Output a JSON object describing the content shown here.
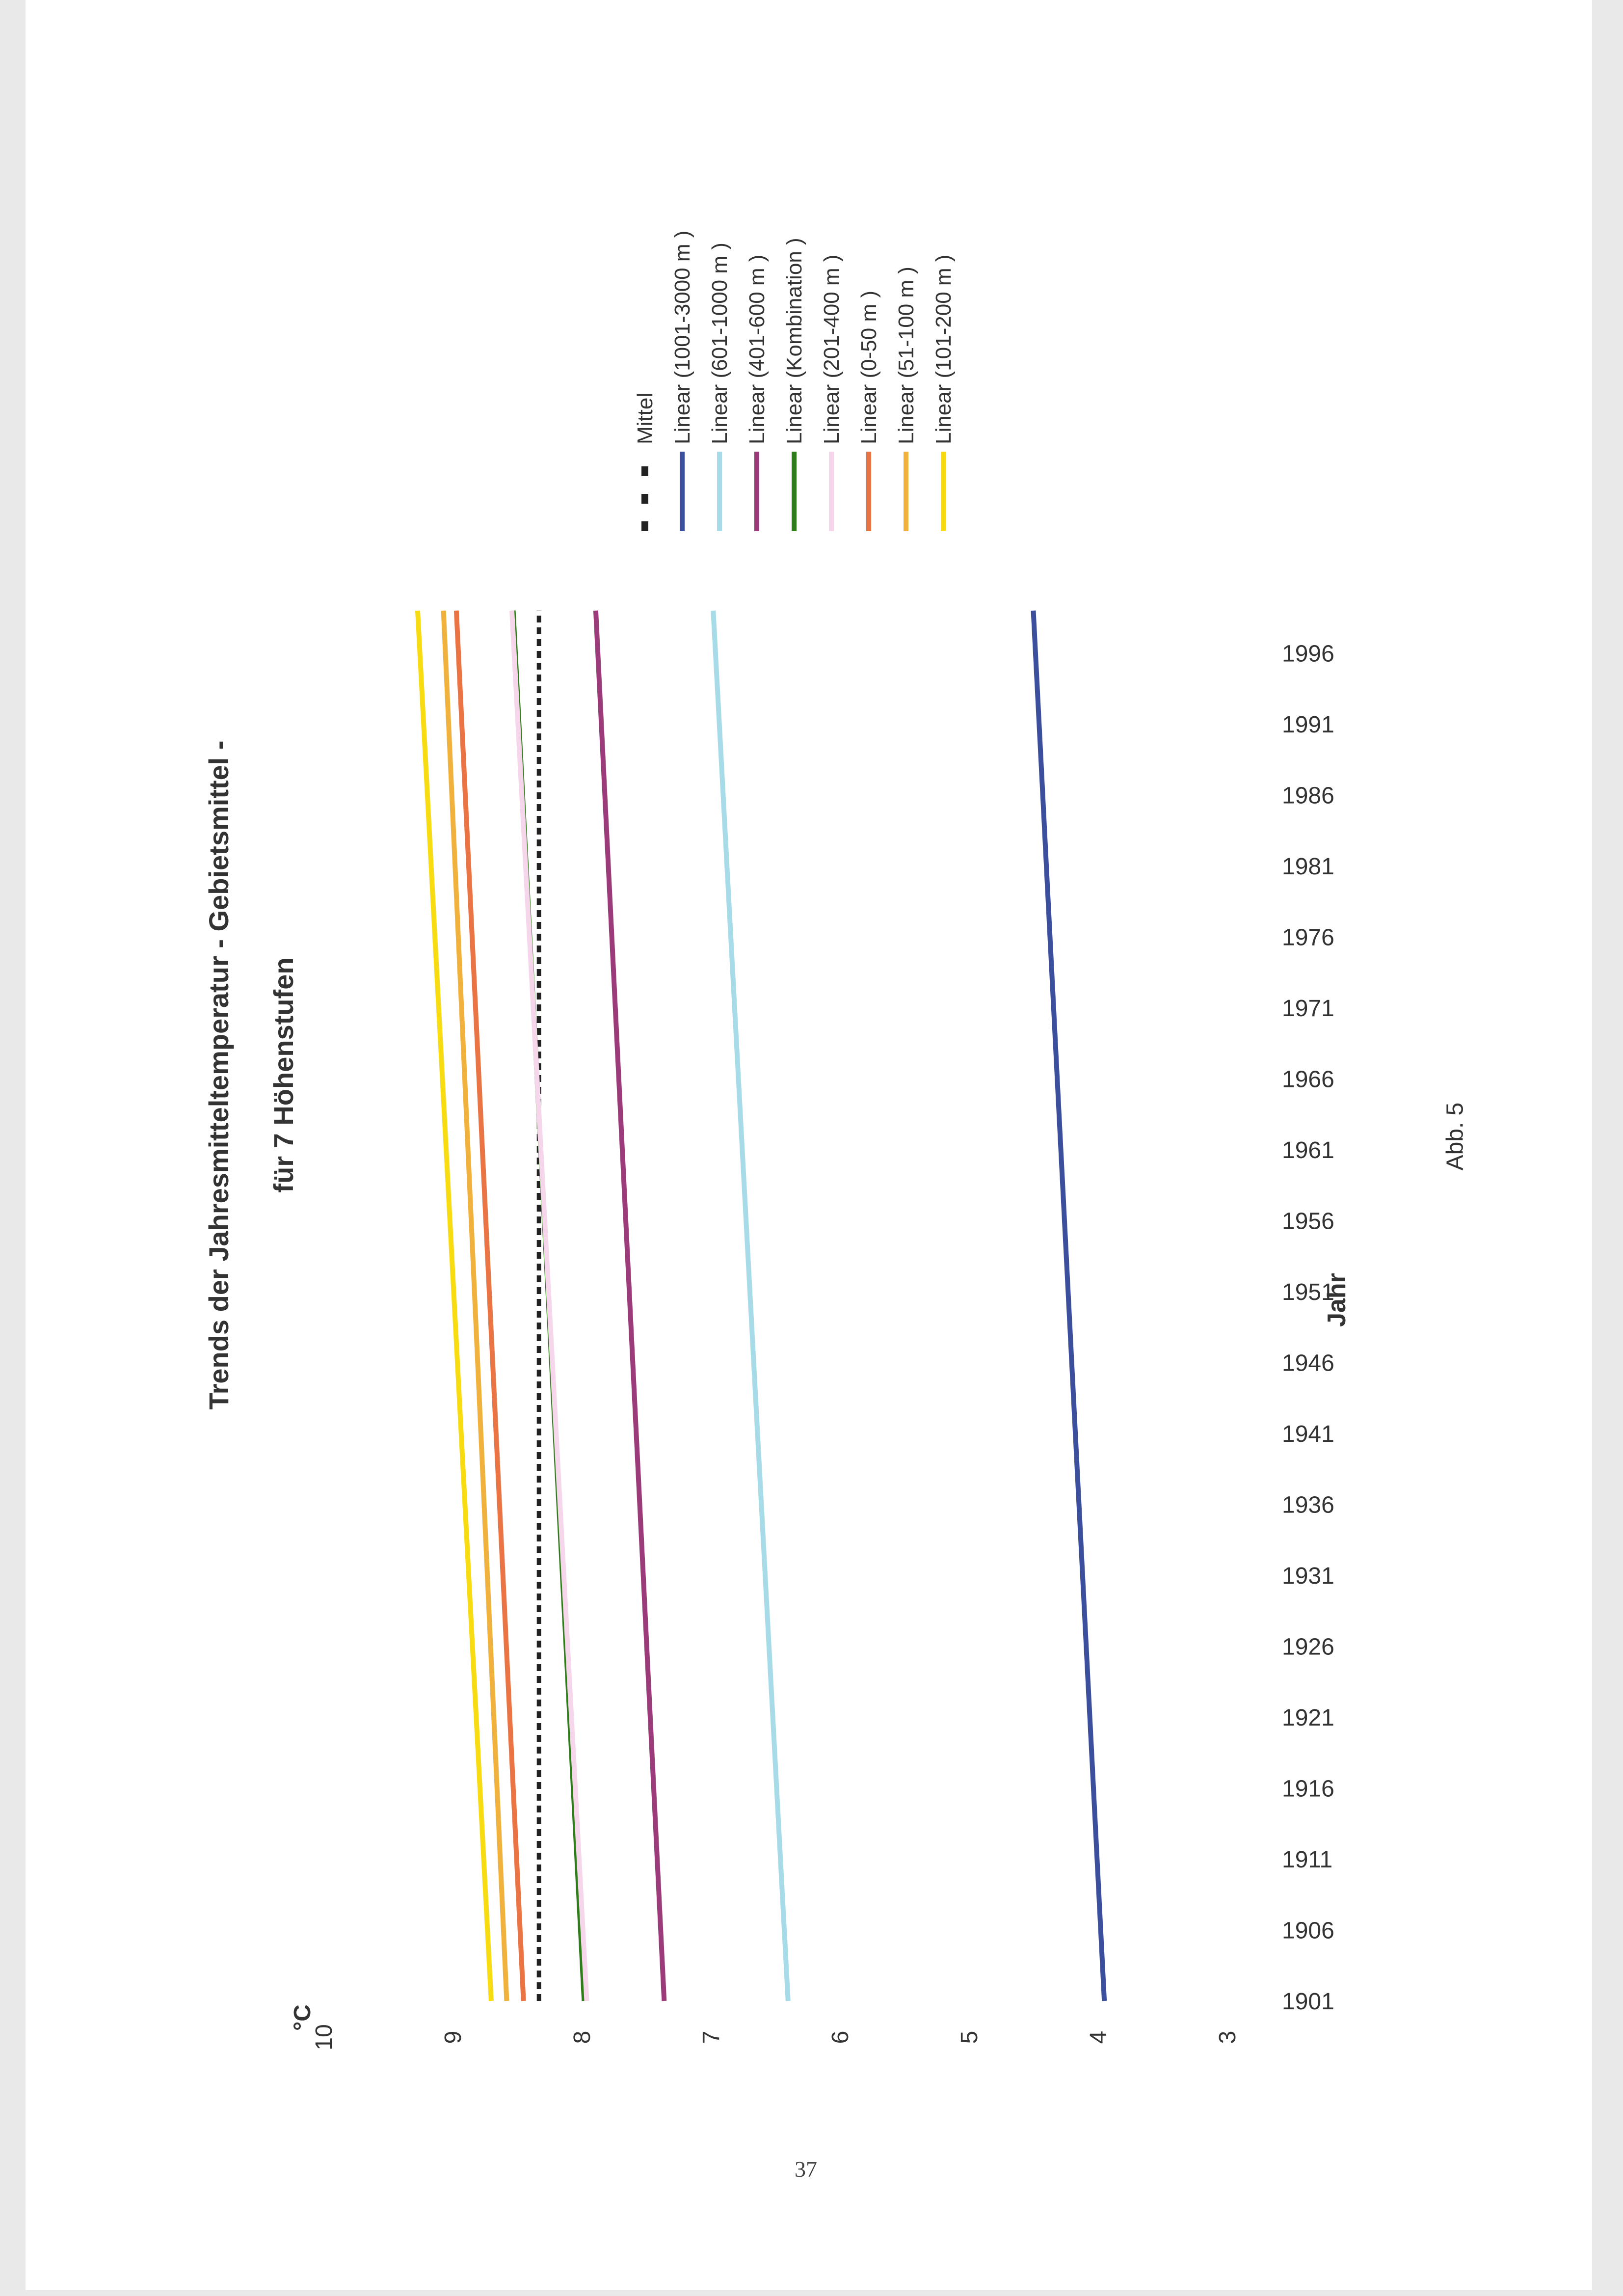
{
  "page": {
    "number": "37",
    "figure_label": "Abb. 5"
  },
  "chart_data": {
    "type": "line",
    "title": "Trends der Jahresmitteltemperatur - Gebietsmittel -",
    "subtitle": "für 7 Höhenstufen",
    "xlabel": "Jahr",
    "ylabel": "°C",
    "x_ticks": [
      "1901",
      "1906",
      "1911",
      "1916",
      "1921",
      "1926",
      "1931",
      "1936",
      "1941",
      "1946",
      "1951",
      "1956",
      "1961",
      "1966",
      "1971",
      "1976",
      "1981",
      "1986",
      "1991",
      "1996"
    ],
    "y_ticks": [
      3,
      4,
      5,
      6,
      7,
      8,
      9,
      10
    ],
    "xlim": [
      1900,
      2000
    ],
    "ylim": [
      3,
      10
    ],
    "grid": false,
    "legend_position": "right",
    "series": [
      {
        "name": "Mittel",
        "color": "#222222",
        "dash": true,
        "x": [
          1901,
          1999
        ],
        "y": [
          8.33,
          8.33
        ]
      },
      {
        "name": "Linear (1001-3000 m )",
        "color": "#3b4f9c",
        "x": [
          1901,
          1999
        ],
        "y": [
          3.95,
          4.5
        ]
      },
      {
        "name": "Linear (601-1000 m )",
        "color": "#a8dbe8",
        "x": [
          1901,
          1999
        ],
        "y": [
          6.4,
          6.98
        ]
      },
      {
        "name": "Linear (401-600 m )",
        "color": "#9c3b7a",
        "x": [
          1901,
          1999
        ],
        "y": [
          7.36,
          7.89
        ]
      },
      {
        "name": "Linear (Kombination )",
        "color": "#2f7d1a",
        "x": [
          1901,
          1999
        ],
        "y": [
          7.98,
          8.53
        ]
      },
      {
        "name": "Linear (201-400 m )",
        "color": "#f6d6ea",
        "x": [
          1901,
          1999
        ],
        "y": [
          7.96,
          8.54
        ]
      },
      {
        "name": "Linear (0-50 m )",
        "color": "#ea7444",
        "x": [
          1901,
          1999
        ],
        "y": [
          8.45,
          8.97
        ]
      },
      {
        "name": "Linear (51-100 m )",
        "color": "#f0b23c",
        "x": [
          1901,
          1999
        ],
        "y": [
          8.58,
          9.07
        ]
      },
      {
        "name": "Linear (101-200 m )",
        "color": "#f8dc12",
        "x": [
          1901,
          1999
        ],
        "y": [
          8.7,
          9.27
        ]
      }
    ]
  }
}
